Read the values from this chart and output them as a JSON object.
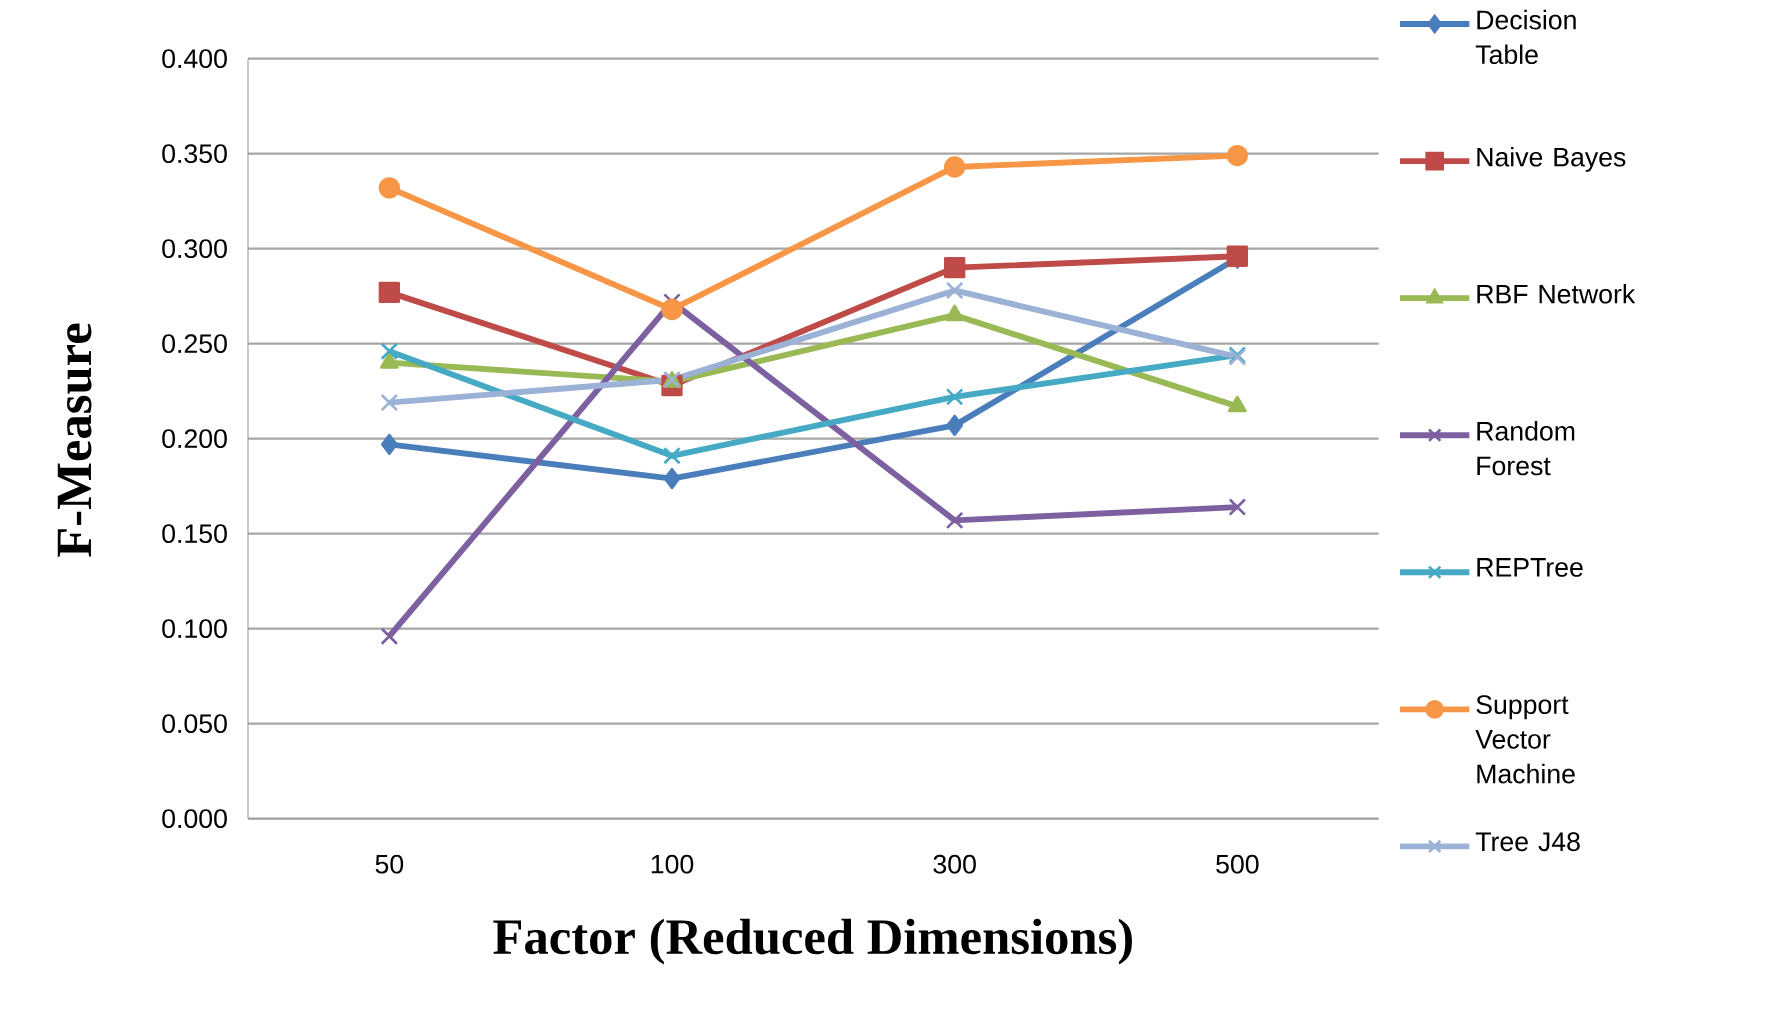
{
  "chart_data": {
    "type": "line",
    "xlabel": "Factor (Reduced  Dimensions)",
    "ylabel": "F-Measure",
    "categories": [
      "50",
      "100",
      "300",
      "500"
    ],
    "ylim": [
      0,
      0.4
    ],
    "yticks": [
      {
        "value": 0,
        "label": "0.000"
      },
      {
        "value": 0.05,
        "label": "0.050"
      },
      {
        "value": 0.1,
        "label": "0.100"
      },
      {
        "value": 0.15,
        "label": "0.150"
      },
      {
        "value": 0.2,
        "label": "0.200"
      },
      {
        "value": 0.25,
        "label": "0.250"
      },
      {
        "value": 0.3,
        "label": "0.300"
      },
      {
        "value": 0.35,
        "label": "0.350"
      },
      {
        "value": 0.4,
        "label": "0.400"
      }
    ],
    "grid": "y",
    "legend": "right",
    "series": [
      {
        "name": "Decision Table",
        "color": "#4a7ebb",
        "marker": "diamond",
        "values": [
          0.197,
          0.179,
          0.207,
          0.295
        ]
      },
      {
        "name": "Naive Bayes",
        "color": "#be4b48",
        "marker": "square",
        "values": [
          0.277,
          0.228,
          0.29,
          0.296
        ]
      },
      {
        "name": "RBF Network",
        "color": "#98b954",
        "marker": "triangle",
        "values": [
          0.24,
          0.23,
          0.265,
          0.217
        ]
      },
      {
        "name": "Random Forest",
        "color": "#7d60a0",
        "marker": "cross",
        "values": [
          0.096,
          0.272,
          0.157,
          0.164
        ]
      },
      {
        "name": "REPTree",
        "color": "#46aac5",
        "marker": "cross",
        "values": [
          0.246,
          0.191,
          0.222,
          0.244
        ]
      },
      {
        "name": "Support Vector Machine",
        "color": "#f79646",
        "marker": "circle",
        "values": [
          0.332,
          0.268,
          0.343,
          0.349
        ]
      },
      {
        "name": "Tree J48",
        "color": "#9bb1d6",
        "marker": "cross",
        "values": [
          0.219,
          0.231,
          0.278,
          0.243
        ]
      }
    ]
  }
}
